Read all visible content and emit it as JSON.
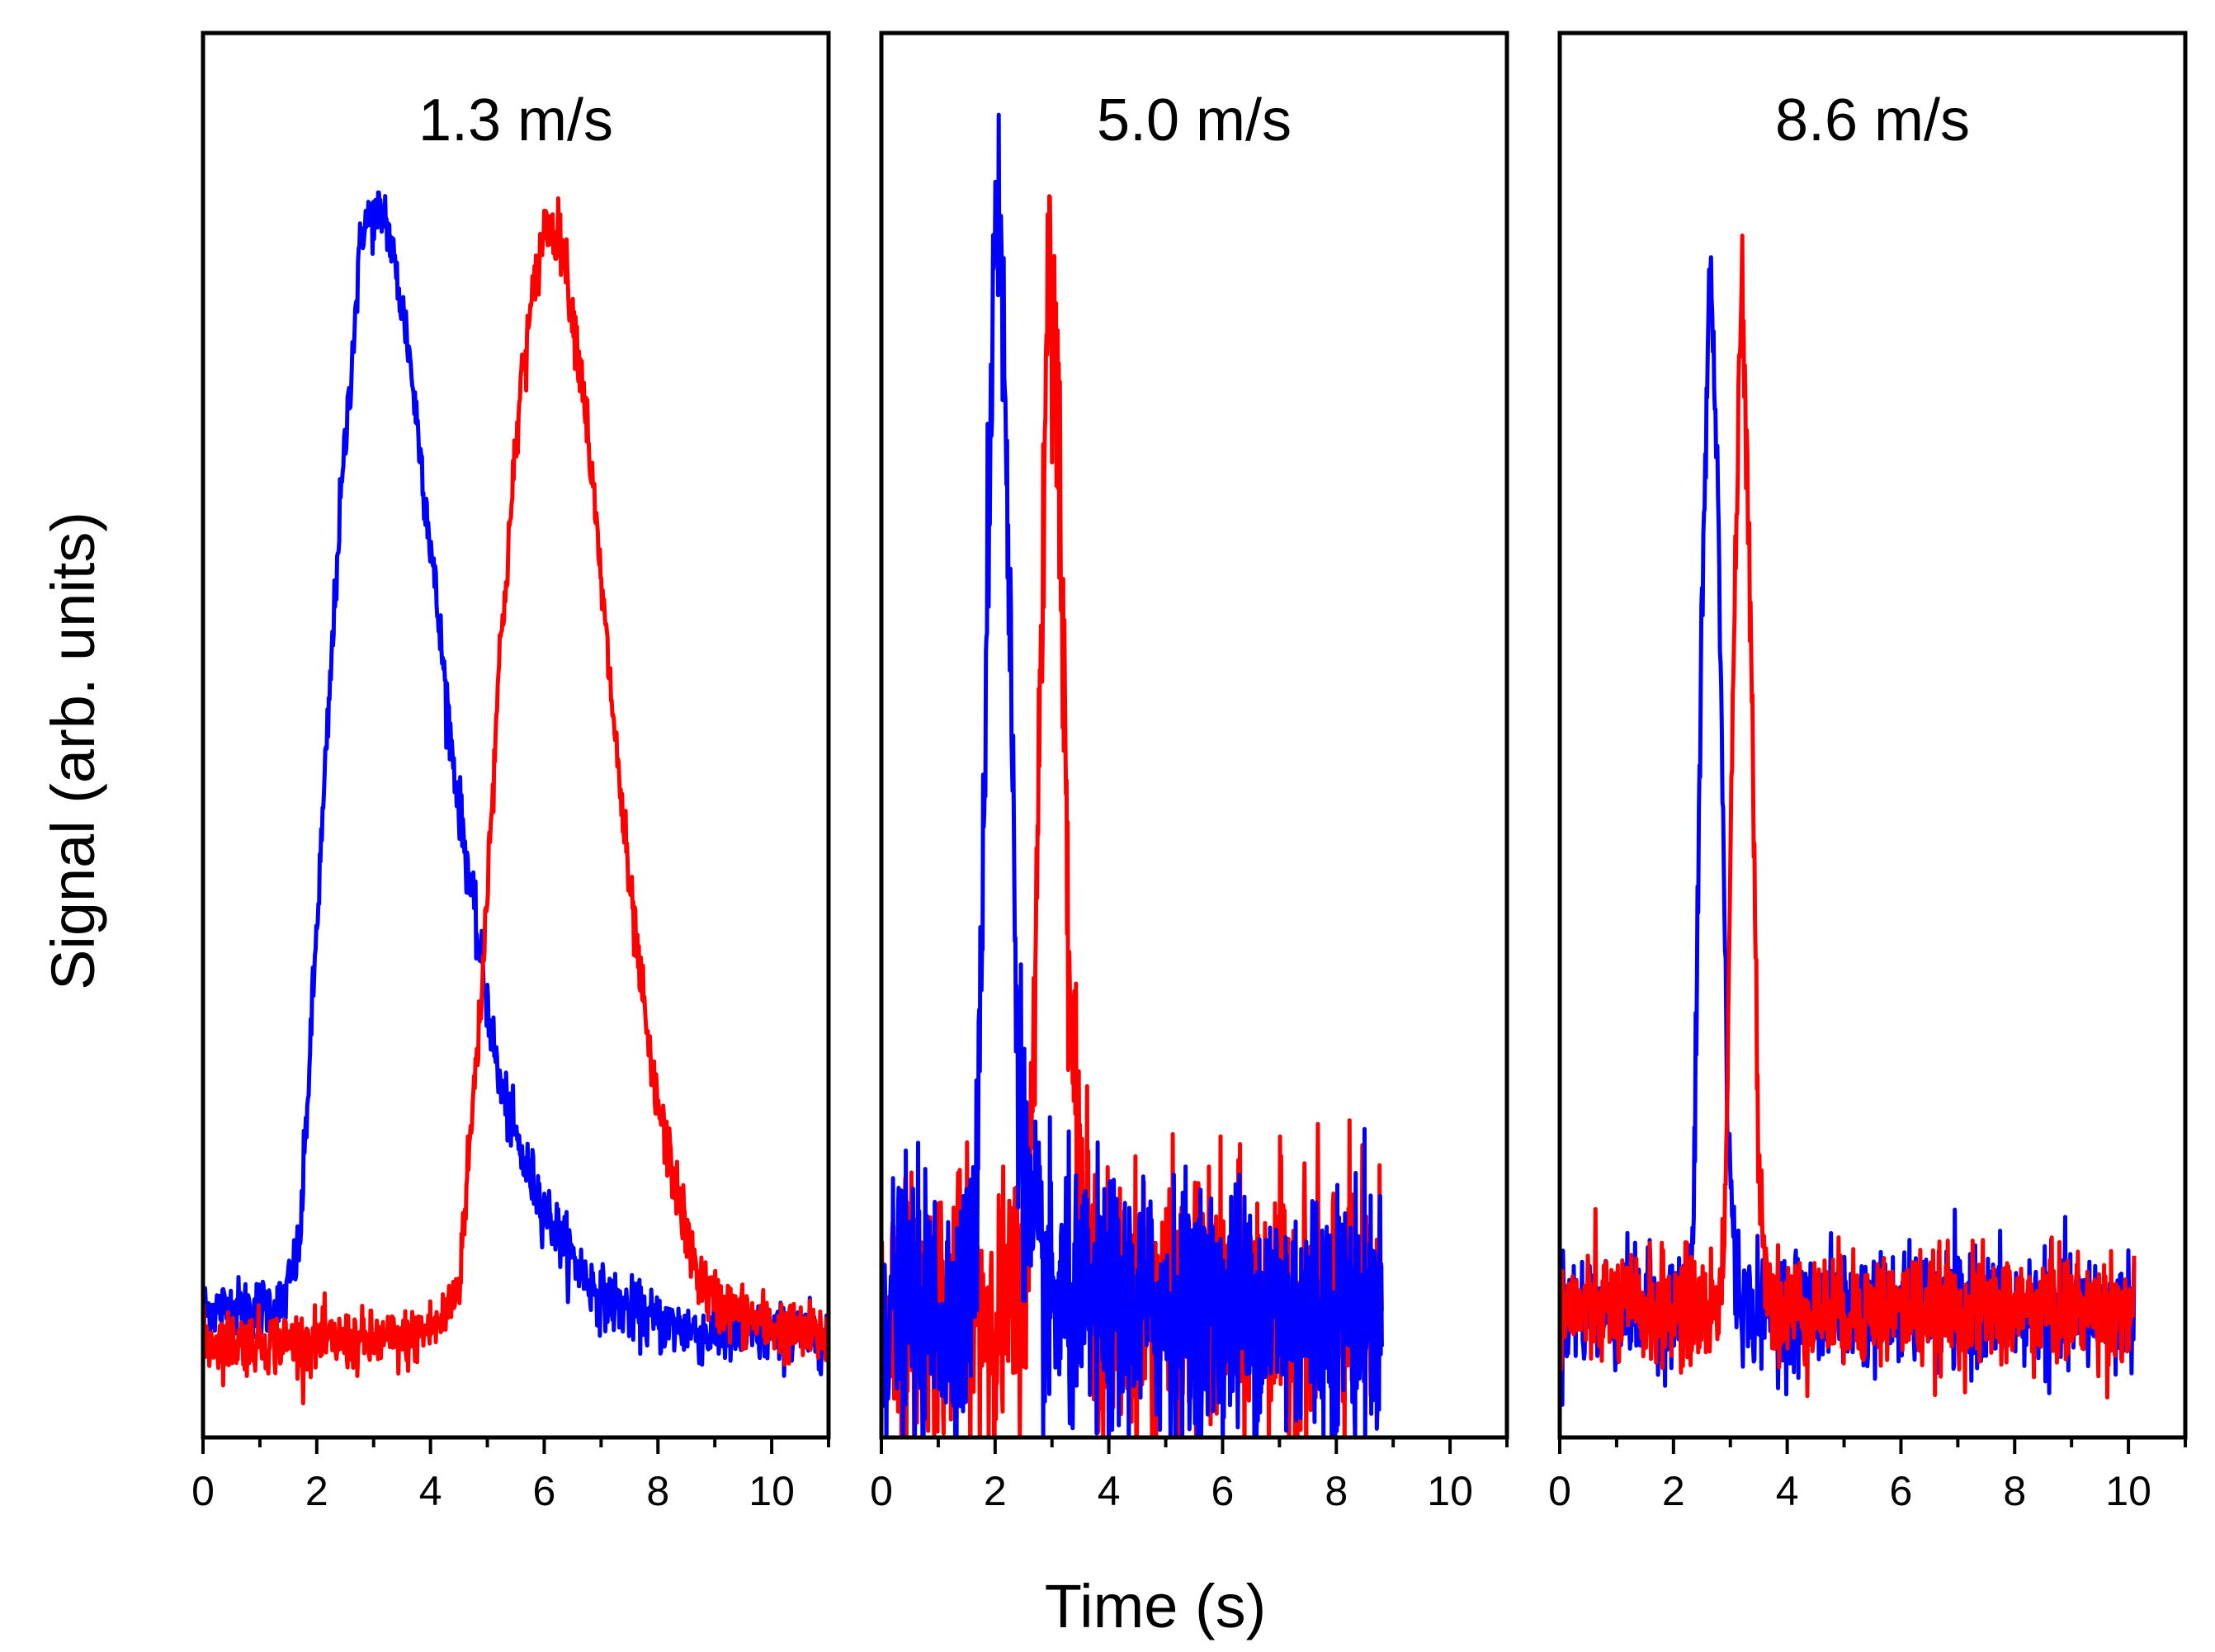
{
  "chart_data": [
    {
      "type": "line",
      "title": "1.3 m/s",
      "xlabel": "Time (s)",
      "ylabel": "Signal (arb. units)",
      "xlim": [
        0,
        11
      ],
      "ylim": [
        -0.1,
        1.0
      ],
      "xticks": [
        0,
        2,
        4,
        6,
        8,
        10
      ],
      "x_range": [
        0,
        11
      ],
      "noise": 0.012,
      "series": [
        {
          "name": "blue",
          "color": "#0000ff",
          "baseline_x": [
            0,
            1.4,
            1.7,
            2.0,
            2.4,
            2.8,
            3.2,
            3.6,
            4.0,
            4.4,
            4.8,
            5.2,
            5.6,
            6.0,
            6.5,
            7.0,
            8.0,
            9.0,
            10.0,
            11.0
          ],
          "baseline_y": [
            0.0,
            0.003,
            0.05,
            0.3,
            0.62,
            0.85,
            0.86,
            0.76,
            0.6,
            0.43,
            0.3,
            0.18,
            0.12,
            0.08,
            0.04,
            0.01,
            -0.01,
            -0.02,
            -0.02,
            -0.02
          ]
        },
        {
          "name": "red",
          "color": "#ff0000",
          "baseline_x": [
            0,
            3.5,
            4.2,
            4.5,
            4.9,
            5.2,
            5.6,
            6.0,
            6.3,
            6.7,
            7.1,
            7.5,
            7.9,
            8.3,
            8.6,
            8.9,
            9.5,
            10.5,
            11.0
          ],
          "baseline_y": [
            -0.025,
            -0.025,
            -0.01,
            0.02,
            0.25,
            0.5,
            0.73,
            0.85,
            0.84,
            0.72,
            0.52,
            0.33,
            0.18,
            0.1,
            0.04,
            0.01,
            -0.005,
            -0.02,
            -0.02
          ]
        }
      ]
    },
    {
      "type": "line",
      "title": "5.0 m/s",
      "xlabel": "Time (s)",
      "ylabel": "Signal (arb. units)",
      "xlim": [
        0,
        11
      ],
      "ylim": [
        -0.1,
        1.0
      ],
      "xticks": [
        0,
        2,
        4,
        6,
        8,
        10
      ],
      "x_range": [
        0,
        8.8
      ],
      "noise": 0.05,
      "series": [
        {
          "name": "red",
          "color": "#ff0000",
          "baseline_x": [
            0,
            2.3,
            2.6,
            2.8,
            2.95,
            3.1,
            3.3,
            3.5,
            3.7,
            4.0,
            8.8
          ],
          "baseline_y": [
            0.0,
            0.0,
            0.05,
            0.5,
            0.86,
            0.7,
            0.3,
            0.08,
            0.02,
            0.0,
            0.0
          ]
        },
        {
          "name": "blue",
          "color": "#0000ff",
          "baseline_x": [
            0,
            1.5,
            1.7,
            1.85,
            2.0,
            2.1,
            2.25,
            2.4,
            2.6,
            2.9,
            3.2,
            8.8
          ],
          "baseline_y": [
            0.0,
            0.0,
            0.1,
            0.55,
            0.88,
            0.85,
            0.55,
            0.2,
            0.06,
            0.01,
            0.0,
            0.0
          ]
        }
      ]
    },
    {
      "type": "line",
      "title": "8.6 m/s",
      "xlabel": "Time (s)",
      "ylabel": "Signal (arb. units)",
      "xlim": [
        0,
        11
      ],
      "ylim": [
        -0.1,
        1.0
      ],
      "xticks": [
        0,
        2,
        4,
        6,
        8,
        10
      ],
      "x_range": [
        0,
        10.1
      ],
      "noise": 0.022,
      "series": [
        {
          "name": "blue",
          "color": "#0000ff",
          "baseline_x": [
            0,
            2.2,
            2.35,
            2.5,
            2.65,
            2.8,
            2.95,
            3.1,
            3.3,
            3.6,
            10.1
          ],
          "baseline_y": [
            0.0,
            0.0,
            0.05,
            0.55,
            0.83,
            0.6,
            0.15,
            0.02,
            0.0,
            0.0,
            0.0
          ]
        },
        {
          "name": "red",
          "color": "#ff0000",
          "baseline_x": [
            0,
            2.75,
            2.9,
            3.05,
            3.2,
            3.35,
            3.5,
            3.65,
            3.85,
            10.1
          ],
          "baseline_y": [
            0.0,
            0.0,
            0.05,
            0.5,
            0.81,
            0.55,
            0.12,
            0.02,
            0.0,
            0.0
          ]
        }
      ]
    }
  ]
}
